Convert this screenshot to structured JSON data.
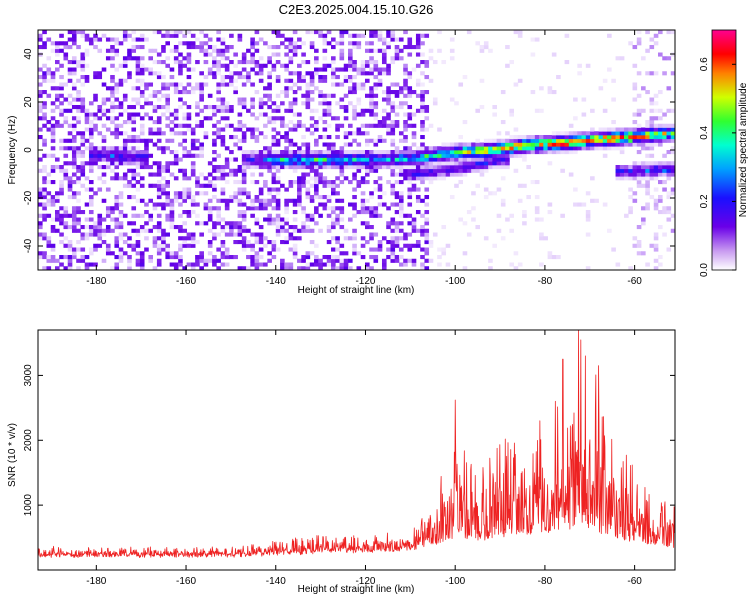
{
  "figure": {
    "title": "C2E3.2025.004.15.10.G26"
  },
  "colors": {
    "snr_line": "#ee2222",
    "axis": "#000000"
  },
  "chart_data": [
    {
      "type": "heatmap",
      "title": "C2E3.2025.004.15.10.G26",
      "xlabel": "Height of straight line (km)",
      "ylabel": "Frequency (Hz)",
      "xlim": [
        -193,
        -51
      ],
      "ylim": [
        -50,
        50
      ],
      "x_ticks": [
        -180,
        -160,
        -140,
        -120,
        -100,
        -80,
        -60
      ],
      "y_ticks": [
        -40,
        -20,
        0,
        20,
        40
      ],
      "colorbar": {
        "label": "Normalized spectral amplitude",
        "range": [
          0.0,
          0.7
        ],
        "ticks": [
          0.0,
          0.2,
          0.4,
          0.6
        ],
        "tick_labels": [
          "0.0",
          "0.2",
          "0.4",
          "0.6"
        ],
        "colormap": "rainbow (white-violet-blue-cyan-green-yellow-red-magenta)"
      },
      "features": {
        "noise_region_x": [
          -193,
          -106
        ],
        "noise_amplitude": 0.15,
        "ridge": [
          {
            "x": -180,
            "y": -2,
            "amp": 0.18
          },
          {
            "x": -176,
            "y": -2,
            "amp": 0.28
          },
          {
            "x": -172,
            "y": -3,
            "amp": 0.22
          },
          {
            "x": -145,
            "y": -4,
            "amp": 0.2
          },
          {
            "x": -138,
            "y": -4,
            "amp": 0.35
          },
          {
            "x": -130,
            "y": -4,
            "amp": 0.38
          },
          {
            "x": -122,
            "y": -4,
            "amp": 0.32
          },
          {
            "x": -115,
            "y": -4,
            "amp": 0.3
          },
          {
            "x": -108,
            "y": -3,
            "amp": 0.35
          },
          {
            "x": -100,
            "y": -1,
            "amp": 0.45
          },
          {
            "x": -92,
            "y": 0,
            "amp": 0.55
          },
          {
            "x": -84,
            "y": 2,
            "amp": 0.55
          },
          {
            "x": -76,
            "y": 3,
            "amp": 0.62
          },
          {
            "x": -70,
            "y": 4,
            "amp": 0.55
          },
          {
            "x": -64,
            "y": 5,
            "amp": 0.6
          },
          {
            "x": -58,
            "y": 6,
            "amp": 0.55
          },
          {
            "x": -52,
            "y": 7,
            "amp": 0.45
          }
        ],
        "secondary_ridge": [
          {
            "x": -110,
            "y": -10,
            "amp": 0.18
          },
          {
            "x": -100,
            "y": -8,
            "amp": 0.22
          },
          {
            "x": -90,
            "y": -4,
            "amp": 0.2
          },
          {
            "x": -62,
            "y": -9,
            "amp": 0.22
          },
          {
            "x": -54,
            "y": -8,
            "amp": 0.25
          }
        ]
      }
    },
    {
      "type": "line",
      "xlabel": "Height of straight line (km)",
      "ylabel": "SNR (10 * v/v)",
      "xlim": [
        -193,
        -51
      ],
      "ylim": [
        0,
        3700
      ],
      "x_ticks": [
        -180,
        -160,
        -140,
        -120,
        -100,
        -80,
        -60
      ],
      "y_ticks": [
        1000,
        2000,
        3000
      ],
      "series": [
        {
          "name": "SNR",
          "color": "#ee2222",
          "envelope": [
            {
              "x": -193,
              "base": 250,
              "amp": 120
            },
            {
              "x": -150,
              "base": 250,
              "amp": 120
            },
            {
              "x": -140,
              "base": 280,
              "amp": 180
            },
            {
              "x": -130,
              "base": 300,
              "amp": 300
            },
            {
              "x": -120,
              "base": 320,
              "amp": 250
            },
            {
              "x": -110,
              "base": 350,
              "amp": 300
            },
            {
              "x": -106,
              "base": 400,
              "amp": 650
            },
            {
              "x": -102,
              "base": 500,
              "amp": 1200
            },
            {
              "x": -100,
              "base": 550,
              "amp": 1700
            },
            {
              "x": -95,
              "base": 500,
              "amp": 1100
            },
            {
              "x": -90,
              "base": 550,
              "amp": 1500
            },
            {
              "x": -85,
              "base": 600,
              "amp": 1400
            },
            {
              "x": -80,
              "base": 600,
              "amp": 2000
            },
            {
              "x": -75,
              "base": 650,
              "amp": 2300
            },
            {
              "x": -72,
              "base": 700,
              "amp": 3000
            },
            {
              "x": -68,
              "base": 600,
              "amp": 2300
            },
            {
              "x": -63,
              "base": 500,
              "amp": 1500
            },
            {
              "x": -58,
              "base": 450,
              "amp": 900
            },
            {
              "x": -53,
              "base": 400,
              "amp": 700
            },
            {
              "x": -51,
              "base": 400,
              "amp": 700
            }
          ],
          "peaks": [
            {
              "x": -100,
              "y": 2620
            },
            {
              "x": -76,
              "y": 3250
            },
            {
              "x": -72.5,
              "y": 3700
            },
            {
              "x": -71,
              "y": 3300
            },
            {
              "x": -68,
              "y": 3150
            }
          ]
        }
      ]
    }
  ]
}
